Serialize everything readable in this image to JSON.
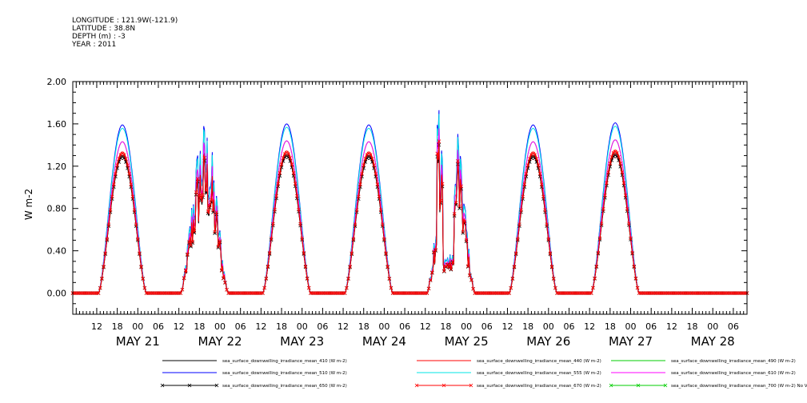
{
  "header": {
    "longitude": "LONGITUDE : 121.9W(-121.9)",
    "latitude": "LATITUDE : 38.8N",
    "depth": "DEPTH (m) : -3",
    "year": "YEAR : 2011"
  },
  "chart_data": {
    "type": "line",
    "ylabel": "W m-2",
    "ylim": [
      -0.2,
      2.0
    ],
    "yticks": [
      "0.00",
      "0.40",
      "0.80",
      "1.20",
      "1.60",
      "2.00"
    ],
    "x_range_hours": [
      "May 20 05:00",
      "May 28 10:00"
    ],
    "hour_ticks": [
      "12",
      "18",
      "00",
      "06",
      "12",
      "18",
      "00",
      "06",
      "12",
      "18",
      "00",
      "06",
      "12",
      "18",
      "00",
      "06",
      "12",
      "18",
      "00",
      "06",
      "12",
      "18",
      "00",
      "06",
      "12",
      "18",
      "00",
      "06",
      "12",
      "18",
      "00",
      "06"
    ],
    "date_labels": [
      "MAY 21",
      "MAY 22",
      "MAY 23",
      "MAY 24",
      "MAY 25",
      "MAY 26",
      "MAY 27",
      "MAY 28"
    ],
    "days": [
      {
        "day": "MAY 21",
        "rise_hour": 12.5,
        "set_hour": 26.5,
        "peak_510": 1.59,
        "cloudy": false
      },
      {
        "day": "MAY 22",
        "rise_hour": 12.5,
        "set_hour": 26.5,
        "peak_510": 1.5,
        "cloudy": true
      },
      {
        "day": "MAY 23",
        "rise_hour": 12.5,
        "set_hour": 26.5,
        "peak_510": 1.6,
        "cloudy": false
      },
      {
        "day": "MAY 24",
        "rise_hour": 12.5,
        "set_hour": 26.5,
        "peak_510": 1.59,
        "cloudy": false
      },
      {
        "day": "MAY 25",
        "rise_hour": 12.5,
        "set_hour": 26.5,
        "peak_510": 1.8,
        "cloudy": true
      },
      {
        "day": "MAY 26",
        "rise_hour": 12.5,
        "set_hour": 26.5,
        "peak_510": 1.59,
        "cloudy": false
      },
      {
        "day": "MAY 27",
        "rise_hour": 12.5,
        "set_hour": 26.5,
        "peak_510": 1.61,
        "cloudy": false
      }
    ],
    "series": [
      {
        "name": "sea_surface_downwelling_irradiance_mean_410 (W m-2)",
        "color": "#000000",
        "scale": 0.82,
        "marker": "none"
      },
      {
        "name": "sea_surface_downwelling_irradiance_mean_440 (W m-2)",
        "color": "#ff0000",
        "scale": 0.84,
        "marker": "none"
      },
      {
        "name": "sea_surface_downwelling_irradiance_mean_490 (W m-2)",
        "color": "#00cc00",
        "scale": 0.9,
        "marker": "none"
      },
      {
        "name": "sea_surface_downwelling_irradiance_mean_510 (W m-2)",
        "color": "#0000ff",
        "scale": 1.0,
        "marker": "none"
      },
      {
        "name": "sea_surface_downwelling_irradiance_mean_555 (W m-2)",
        "color": "#00e5e5",
        "scale": 0.98,
        "marker": "none"
      },
      {
        "name": "sea_surface_downwelling_irradiance_mean_610 (W m-2)",
        "color": "#ff00ff",
        "scale": 0.9,
        "marker": "none"
      },
      {
        "name": "sea_surface_downwelling_irradiance_mean_650 (W m-2)",
        "color": "#000000",
        "scale": 0.81,
        "marker": "x"
      },
      {
        "name": "sea_surface_downwelling_irradiance_mean_670 (W m-2)",
        "color": "#ff0000",
        "scale": 0.83,
        "marker": "x"
      },
      {
        "name": "sea_surface_downwelling_irradiance_mean_700 (W m-2) No Valid Data",
        "color": "#00cc00",
        "scale": 0,
        "marker": "x"
      }
    ]
  }
}
